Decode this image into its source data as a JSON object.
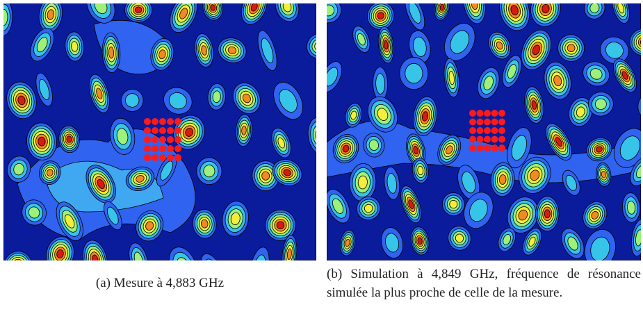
{
  "figures": [
    {
      "label": "(a)",
      "caption": "Mesure à 4,883 GHz"
    },
    {
      "label": "(b)",
      "caption": "Simulation à 4,849 GHz, fréquence de résonance simulée la plus proche de celle de la mesure."
    }
  ]
}
